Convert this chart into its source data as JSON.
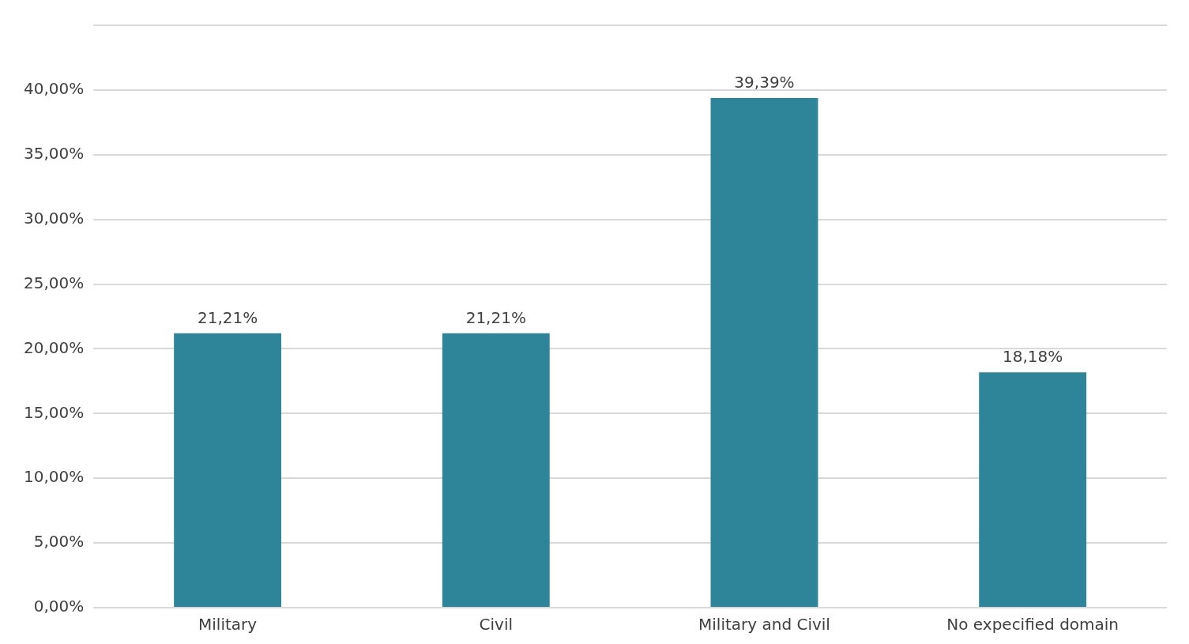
{
  "chart_data": {
    "type": "bar",
    "categories": [
      "Military",
      "Civil",
      "Military and Civil",
      "No expecified domain"
    ],
    "values": [
      21.21,
      21.21,
      39.39,
      18.18
    ],
    "value_labels": [
      "21,21%",
      "21,21%",
      "39,39%",
      "18,18%"
    ],
    "color": "#2e8499",
    "ylim": [
      0,
      45
    ],
    "yticks": [
      {
        "value": 0,
        "label": "0,00%"
      },
      {
        "value": 5,
        "label": "5,00%"
      },
      {
        "value": 10,
        "label": "10,00%"
      },
      {
        "value": 15,
        "label": "15,00%"
      },
      {
        "value": 20,
        "label": "20,00%"
      },
      {
        "value": 25,
        "label": "25,00%"
      },
      {
        "value": 30,
        "label": "30,00%"
      },
      {
        "value": 35,
        "label": "35,00%"
      },
      {
        "value": 40,
        "label": "40,00%"
      },
      {
        "value": 45,
        "label": null
      }
    ],
    "grid": "y",
    "legend": false
  }
}
